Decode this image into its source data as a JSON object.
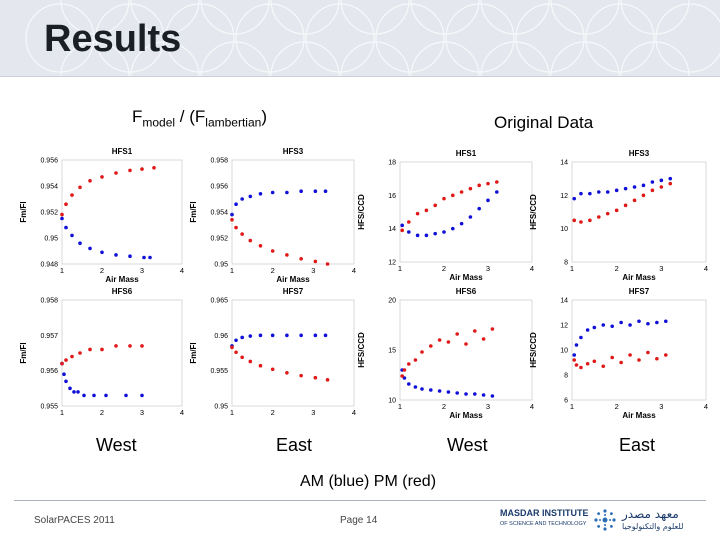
{
  "slide": {
    "title": "Results",
    "heading_left": {
      "f1": "F",
      "sub1": "model",
      "mid": " / (F",
      "sub2": "lambertian",
      "end": ")"
    },
    "heading_right": "Original Data",
    "labels_bottom": [
      "West",
      "East",
      "West",
      "East"
    ],
    "legend_note": "AM (blue)  PM (red)",
    "footer_left": "SolarPACES 2011",
    "footer_page": "Page 14",
    "logo_en1": "MASDAR INSTITUTE",
    "logo_en2": "OF SCIENCE AND TECHNOLOGY",
    "logo_ar1": "معهد مصدر",
    "logo_ar2": "للعلوم والتكنولوجيا"
  },
  "colors": {
    "am": "#1010d8",
    "pm": "#e01818"
  },
  "chart_data": [
    {
      "type": "scatter",
      "title": "HFS1",
      "xlabel": "Air Mass",
      "ylabel": "Fm/Fl",
      "xlim": [
        1,
        4
      ],
      "ylim": [
        0.948,
        0.956
      ],
      "xticks": [
        "1",
        "2",
        "3",
        "4"
      ],
      "yticks": [
        "0.948",
        "0.95",
        "0.952",
        "0.954",
        "0.956"
      ],
      "series": [
        {
          "name": "AM",
          "x": [
            1.0,
            1.1,
            1.25,
            1.45,
            1.7,
            2.0,
            2.35,
            2.7,
            3.05,
            3.2
          ],
          "y": [
            0.9515,
            0.9508,
            0.9502,
            0.9496,
            0.9492,
            0.9489,
            0.9487,
            0.9486,
            0.9485,
            0.9485
          ]
        },
        {
          "name": "PM",
          "x": [
            1.0,
            1.1,
            1.25,
            1.45,
            1.7,
            2.0,
            2.35,
            2.7,
            3.0,
            3.3
          ],
          "y": [
            0.9518,
            0.9526,
            0.9533,
            0.9539,
            0.9544,
            0.9547,
            0.955,
            0.9552,
            0.9553,
            0.9554
          ]
        }
      ]
    },
    {
      "type": "scatter",
      "title": "HFS3",
      "xlabel": "Air Mass",
      "ylabel": "Fm/Fl",
      "xlim": [
        1,
        4
      ],
      "ylim": [
        0.95,
        0.958
      ],
      "xticks": [
        "1",
        "2",
        "3",
        "4"
      ],
      "yticks": [
        "0.95",
        "0.952",
        "0.954",
        "0.956",
        "0.958"
      ],
      "series": [
        {
          "name": "AM",
          "x": [
            1.0,
            1.1,
            1.25,
            1.45,
            1.7,
            2.0,
            2.35,
            2.7,
            3.05,
            3.3
          ],
          "y": [
            0.9538,
            0.9546,
            0.955,
            0.9552,
            0.9554,
            0.9555,
            0.9555,
            0.9556,
            0.9556,
            0.9556
          ]
        },
        {
          "name": "PM",
          "x": [
            1.0,
            1.1,
            1.25,
            1.45,
            1.7,
            2.0,
            2.35,
            2.7,
            3.05,
            3.35
          ],
          "y": [
            0.9534,
            0.9528,
            0.9523,
            0.9518,
            0.9514,
            0.951,
            0.9507,
            0.9504,
            0.9502,
            0.95
          ]
        }
      ]
    },
    {
      "type": "scatter",
      "title": "HFS1",
      "xlabel": "Air Mass",
      "ylabel": "HFS/CCD",
      "xlim": [
        1,
        4
      ],
      "ylim": [
        12,
        18
      ],
      "xticks": [
        "1",
        "2",
        "3",
        "4"
      ],
      "yticks": [
        "12",
        "14",
        "16",
        "18"
      ],
      "series": [
        {
          "name": "AM",
          "x": [
            1.05,
            1.2,
            1.4,
            1.6,
            1.8,
            2.0,
            2.2,
            2.4,
            2.6,
            2.8,
            3.0,
            3.2
          ],
          "y": [
            14.2,
            13.8,
            13.6,
            13.6,
            13.7,
            13.8,
            14.0,
            14.3,
            14.7,
            15.2,
            15.7,
            16.2
          ]
        },
        {
          "name": "PM",
          "x": [
            1.05,
            1.2,
            1.4,
            1.6,
            1.8,
            2.0,
            2.2,
            2.4,
            2.6,
            2.8,
            3.0,
            3.2
          ],
          "y": [
            13.9,
            14.4,
            14.9,
            15.1,
            15.4,
            15.8,
            16.0,
            16.2,
            16.4,
            16.6,
            16.7,
            16.8
          ]
        }
      ]
    },
    {
      "type": "scatter",
      "title": "HFS3",
      "xlabel": "Air Mass",
      "ylabel": "HFS/CCD",
      "xlim": [
        1,
        4
      ],
      "ylim": [
        8,
        14
      ],
      "xticks": [
        "1",
        "2",
        "3",
        "4"
      ],
      "yticks": [
        "8",
        "10",
        "12",
        "14"
      ],
      "series": [
        {
          "name": "AM",
          "x": [
            1.05,
            1.2,
            1.4,
            1.6,
            1.8,
            2.0,
            2.2,
            2.4,
            2.6,
            2.8,
            3.0,
            3.2
          ],
          "y": [
            11.8,
            12.1,
            12.1,
            12.2,
            12.2,
            12.3,
            12.4,
            12.5,
            12.6,
            12.8,
            12.9,
            13.0
          ]
        },
        {
          "name": "PM",
          "x": [
            1.05,
            1.2,
            1.4,
            1.6,
            1.8,
            2.0,
            2.2,
            2.4,
            2.6,
            2.8,
            3.0,
            3.2
          ],
          "y": [
            10.5,
            10.4,
            10.5,
            10.7,
            10.9,
            11.1,
            11.4,
            11.7,
            12.0,
            12.3,
            12.5,
            12.7
          ]
        }
      ]
    },
    {
      "type": "scatter",
      "title": "HFS6",
      "xlabel": "",
      "ylabel": "Fm/Fl",
      "xlim": [
        1,
        4
      ],
      "ylim": [
        0.955,
        0.958
      ],
      "xticks": [
        "1",
        "2",
        "3",
        "4"
      ],
      "yticks": [
        "0.955",
        "0.956",
        "0.957",
        "0.958"
      ],
      "series": [
        {
          "name": "AM",
          "x": [
            1.0,
            1.05,
            1.1,
            1.2,
            1.3,
            1.4,
            1.55,
            1.8,
            2.1,
            2.6,
            3.0
          ],
          "y": [
            0.9562,
            0.9559,
            0.9557,
            0.9555,
            0.9554,
            0.9554,
            0.9553,
            0.9553,
            0.9553,
            0.9553,
            0.9553
          ]
        },
        {
          "name": "PM",
          "x": [
            1.0,
            1.1,
            1.25,
            1.45,
            1.7,
            2.0,
            2.35,
            2.7,
            3.0
          ],
          "y": [
            0.9562,
            0.9563,
            0.9564,
            0.9565,
            0.9566,
            0.9566,
            0.9567,
            0.9567,
            0.9567
          ]
        }
      ]
    },
    {
      "type": "scatter",
      "title": "HFS7",
      "xlabel": "",
      "ylabel": "Fm/Fl",
      "xlim": [
        1,
        4
      ],
      "ylim": [
        0.95,
        0.965
      ],
      "xticks": [
        "1",
        "2",
        "3",
        "4"
      ],
      "yticks": [
        "0.95",
        "0.955",
        "0.96",
        "0.965"
      ],
      "series": [
        {
          "name": "AM",
          "x": [
            1.0,
            1.1,
            1.25,
            1.45,
            1.7,
            2.0,
            2.35,
            2.7,
            3.05,
            3.3
          ],
          "y": [
            0.9585,
            0.9593,
            0.9597,
            0.9599,
            0.96,
            0.96,
            0.96,
            0.96,
            0.96,
            0.96
          ]
        },
        {
          "name": "PM",
          "x": [
            1.0,
            1.1,
            1.25,
            1.45,
            1.7,
            2.0,
            2.35,
            2.7,
            3.05,
            3.35
          ],
          "y": [
            0.9583,
            0.9576,
            0.9569,
            0.9563,
            0.9557,
            0.9552,
            0.9547,
            0.9543,
            0.954,
            0.9537
          ]
        }
      ]
    },
    {
      "type": "scatter",
      "title": "HFS6",
      "xlabel": "Air Mass",
      "ylabel": "HFS/CCD",
      "xlim": [
        1,
        4
      ],
      "ylim": [
        10,
        20
      ],
      "xticks": [
        "1",
        "2",
        "3",
        "4"
      ],
      "yticks": [
        "10",
        "15",
        "20"
      ],
      "series": [
        {
          "name": "AM",
          "x": [
            1.05,
            1.1,
            1.2,
            1.35,
            1.5,
            1.7,
            1.9,
            2.1,
            2.3,
            2.5,
            2.7,
            2.9,
            3.1
          ],
          "y": [
            13.0,
            12.2,
            11.6,
            11.3,
            11.1,
            11.0,
            10.9,
            10.8,
            10.7,
            10.6,
            10.6,
            10.5,
            10.4
          ]
        },
        {
          "name": "PM",
          "x": [
            1.05,
            1.1,
            1.2,
            1.35,
            1.5,
            1.7,
            1.9,
            2.1,
            2.3,
            2.5,
            2.7,
            2.9,
            3.1
          ],
          "y": [
            12.4,
            13.0,
            13.6,
            14.0,
            14.8,
            15.4,
            16.0,
            15.8,
            16.6,
            15.6,
            16.9,
            16.1,
            17.1
          ]
        }
      ]
    },
    {
      "type": "scatter",
      "title": "HFS7",
      "xlabel": "Air Mass",
      "ylabel": "HFS/CCD",
      "xlim": [
        1,
        4
      ],
      "ylim": [
        6,
        14
      ],
      "xticks": [
        "1",
        "2",
        "3",
        "4"
      ],
      "yticks": [
        "6",
        "8",
        "10",
        "12",
        "14"
      ],
      "series": [
        {
          "name": "AM",
          "x": [
            1.05,
            1.1,
            1.2,
            1.35,
            1.5,
            1.7,
            1.9,
            2.1,
            2.3,
            2.5,
            2.7,
            2.9,
            3.1
          ],
          "y": [
            9.6,
            10.4,
            11.0,
            11.6,
            11.8,
            12.0,
            11.9,
            12.2,
            12.0,
            12.3,
            12.1,
            12.2,
            12.3
          ]
        },
        {
          "name": "PM",
          "x": [
            1.05,
            1.1,
            1.2,
            1.35,
            1.5,
            1.7,
            1.9,
            2.1,
            2.3,
            2.5,
            2.7,
            2.9,
            3.1
          ],
          "y": [
            9.2,
            8.8,
            8.6,
            8.9,
            9.1,
            8.7,
            9.4,
            9.0,
            9.6,
            9.2,
            9.8,
            9.3,
            9.6
          ]
        }
      ]
    }
  ]
}
